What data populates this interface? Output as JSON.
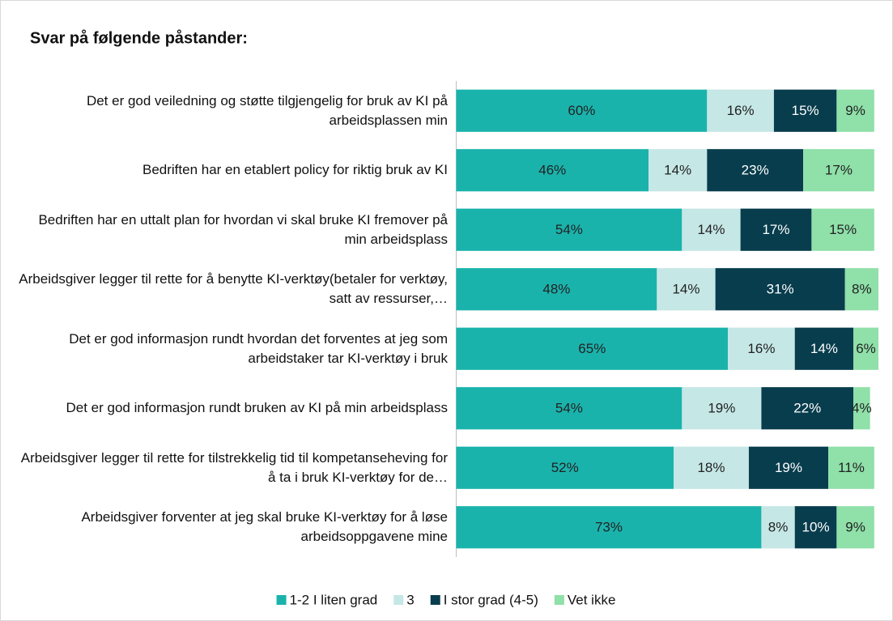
{
  "chart_data": {
    "type": "stacked-bar-horizontal",
    "title": "Svar på følgende påstander:",
    "categories": [
      "Det er god veiledning og støtte tilgjengelig for bruk av KI på arbeidsplassen min",
      "Bedriften har en etablert policy for riktig bruk av KI",
      "Bedriften har en uttalt plan for hvordan vi skal bruke KI fremover på min arbeidsplass",
      "Arbeidsgiver legger til rette for å benytte KI-verktøy(betaler for verktøy, satt av ressurser,…",
      "Det er god informasjon rundt hvordan det forventes at jeg som arbeidstaker tar KI-verktøy i bruk",
      "Det er god informasjon rundt bruken av KI på min arbeidsplass",
      "Arbeidsgiver legger til rette for tilstrekkelig tid til kompetanseheving for å ta i bruk KI-verktøy for de…",
      "Arbeidsgiver forventer at jeg skal bruke KI-verktøy for å løse arbeidsoppgavene mine"
    ],
    "series": [
      {
        "name": "1-2 I liten grad",
        "color": "#1ab3ac",
        "values": [
          60,
          46,
          54,
          48,
          65,
          54,
          52,
          73
        ],
        "value_labels": [
          "60%",
          "46%",
          "54%",
          "48%",
          "65%",
          "54%",
          "52%",
          "73%"
        ]
      },
      {
        "name": "3",
        "color": "#c5e7e6",
        "values": [
          16,
          14,
          14,
          14,
          16,
          19,
          18,
          8
        ],
        "value_labels": [
          "16%",
          "14%",
          "14%",
          "14%",
          "16%",
          "19%",
          "18%",
          "8%"
        ]
      },
      {
        "name": "I stor grad (4-5)",
        "color": "#083d4d",
        "values": [
          15,
          23,
          17,
          31,
          14,
          22,
          19,
          10
        ],
        "value_labels": [
          "15%",
          "23%",
          "17%",
          "31%",
          "14%",
          "22%",
          "19%",
          "10%"
        ]
      },
      {
        "name": "Vet ikke",
        "color": "#8fe0a9",
        "values": [
          9,
          17,
          15,
          8,
          6,
          4,
          11,
          9
        ],
        "value_labels": [
          "9%",
          "17%",
          "15%",
          "8%",
          "6%",
          "4%",
          "11%",
          "9%"
        ]
      }
    ],
    "xlim": [
      0,
      101
    ],
    "legend": "bottom"
  }
}
